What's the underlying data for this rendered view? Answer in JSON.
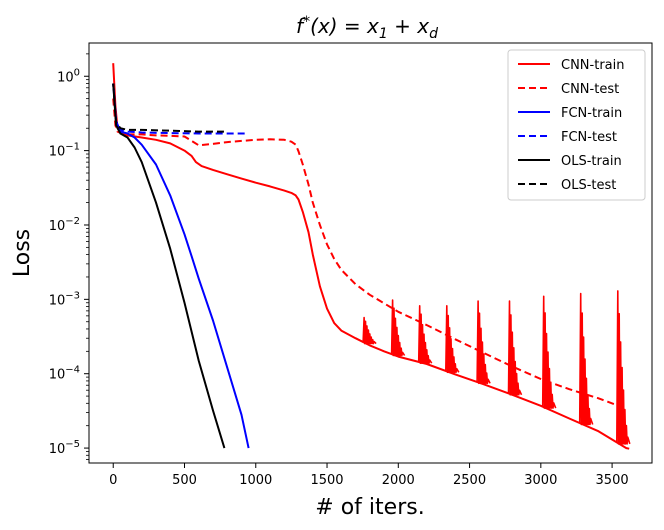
{
  "chart_data": {
    "type": "line",
    "title": "f*(x) = x1 + xd",
    "xlabel": "# of iters.",
    "ylabel": "Loss",
    "yscale": "log",
    "xlim": [
      -170,
      3780
    ],
    "ylim": [
      6.3e-06,
      2.8
    ],
    "x_ticks": [
      {
        "value": 0,
        "label": "0"
      },
      {
        "value": 500,
        "label": "500"
      },
      {
        "value": 1000,
        "label": "1000"
      },
      {
        "value": 1500,
        "label": "1500"
      },
      {
        "value": 2000,
        "label": "2000"
      },
      {
        "value": 2500,
        "label": "2500"
      },
      {
        "value": 3000,
        "label": "3000"
      },
      {
        "value": 3500,
        "label": "3500"
      }
    ],
    "y_ticks": [
      {
        "value": 1,
        "mant": "10",
        "exp": "0"
      },
      {
        "value": 0.1,
        "mant": "10",
        "exp": "−1"
      },
      {
        "value": 0.01,
        "mant": "10",
        "exp": "−2"
      },
      {
        "value": 0.001,
        "mant": "10",
        "exp": "−3"
      },
      {
        "value": 0.0001,
        "mant": "10",
        "exp": "−4"
      },
      {
        "value": 1e-05,
        "mant": "10",
        "exp": "−5"
      }
    ],
    "legend_position": "top-right",
    "series": [
      {
        "name": "CNN-train",
        "color": "#ff0000",
        "dash": "solid",
        "x": [
          0,
          15,
          30,
          60,
          100,
          200,
          300,
          400,
          500,
          550,
          580,
          620,
          700,
          800,
          900,
          1000,
          1100,
          1200,
          1250,
          1280,
          1300,
          1330,
          1370,
          1400,
          1450,
          1500,
          1550,
          1600,
          1700,
          1800,
          1900,
          2000,
          2200,
          2400,
          2600,
          2800,
          3000,
          3200,
          3400,
          3600,
          3620
        ],
        "y": [
          1.5,
          0.4,
          0.2,
          0.17,
          0.16,
          0.15,
          0.14,
          0.125,
          0.1,
          0.085,
          0.07,
          0.062,
          0.055,
          0.048,
          0.042,
          0.037,
          0.033,
          0.029,
          0.027,
          0.025,
          0.022,
          0.015,
          0.008,
          0.004,
          0.0015,
          0.00075,
          0.00048,
          0.00038,
          0.0003,
          0.00024,
          0.0002,
          0.00017,
          0.000135,
          9.8e-05,
          7.2e-05,
          5.2e-05,
          3.7e-05,
          2.5e-05,
          1.7e-05,
          1e-05,
          9.8e-06
        ]
      },
      {
        "name": "CNN-test",
        "color": "#ff0000",
        "dash": "dashed",
        "x": [
          0,
          15,
          30,
          60,
          100,
          200,
          300,
          400,
          500,
          550,
          600,
          700,
          800,
          900,
          1000,
          1100,
          1200,
          1250,
          1280,
          1300,
          1330,
          1370,
          1400,
          1450,
          1500,
          1550,
          1600,
          1700,
          1800,
          2000,
          2200,
          2400,
          2600,
          2800,
          3000,
          3200,
          3400,
          3600
        ],
        "y": [
          0.5,
          0.22,
          0.18,
          0.17,
          0.165,
          0.165,
          0.16,
          0.158,
          0.155,
          0.135,
          0.118,
          0.123,
          0.13,
          0.135,
          0.14,
          0.142,
          0.14,
          0.132,
          0.12,
          0.098,
          0.065,
          0.035,
          0.02,
          0.01,
          0.0055,
          0.0035,
          0.0025,
          0.0016,
          0.00115,
          0.00068,
          0.00045,
          0.00029,
          0.00019,
          0.000125,
          8.5e-05,
          6.2e-05,
          4.7e-05,
          3.4e-05
        ]
      },
      {
        "name": "FCN-train",
        "color": "#0000ff",
        "dash": "solid",
        "x": [
          0,
          20,
          50,
          100,
          150,
          200,
          300,
          400,
          500,
          550,
          600,
          700,
          800,
          900,
          950
        ],
        "y": [
          0.8,
          0.25,
          0.18,
          0.17,
          0.15,
          0.12,
          0.065,
          0.025,
          0.0075,
          0.0038,
          0.0019,
          0.00052,
          0.00012,
          2.8e-05,
          1e-05
        ]
      },
      {
        "name": "FCN-test",
        "color": "#0000ff",
        "dash": "dashed",
        "x": [
          0,
          20,
          50,
          100,
          200,
          400,
          600,
          800,
          950
        ],
        "y": [
          0.8,
          0.25,
          0.19,
          0.18,
          0.175,
          0.172,
          0.17,
          0.17,
          0.17
        ]
      },
      {
        "name": "OLS-train",
        "color": "#000000",
        "dash": "solid",
        "x": [
          0,
          20,
          50,
          100,
          150,
          200,
          300,
          400,
          500,
          600,
          700,
          780
        ],
        "y": [
          0.8,
          0.22,
          0.17,
          0.15,
          0.11,
          0.07,
          0.02,
          0.0048,
          0.0009,
          0.00015,
          3.2e-05,
          1e-05
        ]
      },
      {
        "name": "OLS-test",
        "color": "#000000",
        "dash": "dashed",
        "x": [
          0,
          20,
          50,
          100,
          200,
          400,
          600,
          780
        ],
        "y": [
          0.8,
          0.24,
          0.2,
          0.19,
          0.19,
          0.185,
          0.18,
          0.18
        ]
      }
    ],
    "spikes": [
      {
        "x": 1760,
        "peak": 0.00057
      },
      {
        "x": 1960,
        "peak": 0.00098
      },
      {
        "x": 2150,
        "peak": 0.00082
      },
      {
        "x": 2340,
        "peak": 0.00082
      },
      {
        "x": 2560,
        "peak": 0.00095
      },
      {
        "x": 2780,
        "peak": 0.00095
      },
      {
        "x": 3020,
        "peak": 0.0011
      },
      {
        "x": 3280,
        "peak": 0.0012
      },
      {
        "x": 3540,
        "peak": 0.0013
      }
    ]
  }
}
